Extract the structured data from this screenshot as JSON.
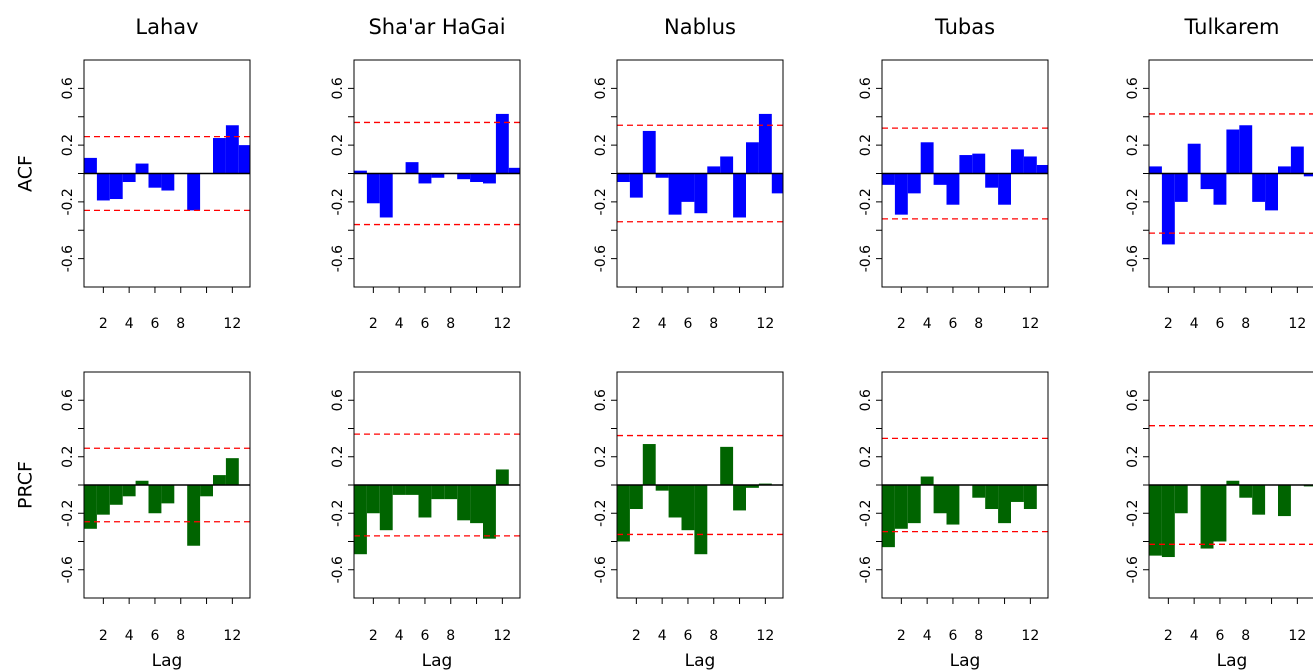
{
  "figure": {
    "row_labels": [
      "ACF",
      "PRCF"
    ],
    "x_axis_label": "Lag",
    "bar_colors": {
      "ACF": "#0000ff",
      "PRCF": "#006400"
    },
    "bound_color": "#ff0000"
  },
  "chart_data": [
    {
      "type": "bar",
      "title": "Lahav",
      "ylabel": "ACF",
      "xlabel": "",
      "ylim": [
        -0.8,
        0.8
      ],
      "x_ticks": [
        2,
        4,
        6,
        8,
        12
      ],
      "y_ticks": [
        -0.6,
        -0.2,
        0.2,
        0.6
      ],
      "bound": 0.26,
      "lags": [
        1,
        2,
        3,
        4,
        5,
        6,
        7,
        8,
        9,
        10,
        11,
        12,
        13
      ],
      "values": [
        0.11,
        -0.19,
        -0.18,
        -0.06,
        0.07,
        -0.1,
        -0.12,
        0.0,
        -0.26,
        0.0,
        0.25,
        0.34,
        0.2
      ]
    },
    {
      "type": "bar",
      "title": "Sha'ar HaGai",
      "ylabel": "",
      "xlabel": "",
      "ylim": [
        -0.8,
        0.8
      ],
      "x_ticks": [
        2,
        4,
        6,
        8,
        12
      ],
      "y_ticks": [
        -0.6,
        -0.2,
        0.2,
        0.6
      ],
      "bound": 0.36,
      "lags": [
        1,
        2,
        3,
        4,
        5,
        6,
        7,
        8,
        9,
        10,
        11,
        12,
        13
      ],
      "values": [
        0.02,
        -0.21,
        -0.31,
        0.0,
        0.08,
        -0.07,
        -0.03,
        0.0,
        -0.04,
        -0.06,
        -0.07,
        0.42,
        0.04
      ]
    },
    {
      "type": "bar",
      "title": "Nablus",
      "ylabel": "",
      "xlabel": "",
      "ylim": [
        -0.8,
        0.8
      ],
      "x_ticks": [
        2,
        4,
        6,
        8,
        12
      ],
      "y_ticks": [
        -0.6,
        -0.2,
        0.2,
        0.6
      ],
      "bound": 0.34,
      "lags": [
        1,
        2,
        3,
        4,
        5,
        6,
        7,
        8,
        9,
        10,
        11,
        12,
        13
      ],
      "values": [
        -0.06,
        -0.17,
        0.3,
        -0.03,
        -0.29,
        -0.2,
        -0.28,
        0.05,
        0.12,
        -0.31,
        0.22,
        0.42,
        -0.14
      ]
    },
    {
      "type": "bar",
      "title": "Tubas",
      "ylabel": "",
      "xlabel": "",
      "ylim": [
        -0.8,
        0.8
      ],
      "x_ticks": [
        2,
        4,
        6,
        8,
        12
      ],
      "y_ticks": [
        -0.6,
        -0.2,
        0.2,
        0.6
      ],
      "bound": 0.32,
      "lags": [
        1,
        2,
        3,
        4,
        5,
        6,
        7,
        8,
        9,
        10,
        11,
        12,
        13
      ],
      "values": [
        -0.08,
        -0.29,
        -0.14,
        0.22,
        -0.08,
        -0.22,
        0.13,
        0.14,
        -0.1,
        -0.22,
        0.17,
        0.12,
        0.06
      ]
    },
    {
      "type": "bar",
      "title": "Tulkarem",
      "ylabel": "",
      "xlabel": "",
      "ylim": [
        -0.8,
        0.8
      ],
      "x_ticks": [
        2,
        4,
        6,
        8,
        12
      ],
      "y_ticks": [
        -0.6,
        -0.2,
        0.2,
        0.6
      ],
      "bound": 0.42,
      "lags": [
        1,
        2,
        3,
        4,
        5,
        6,
        7,
        8,
        9,
        10,
        11,
        12,
        13
      ],
      "values": [
        0.05,
        -0.5,
        -0.2,
        0.21,
        -0.11,
        -0.22,
        0.31,
        0.34,
        -0.2,
        -0.26,
        0.05,
        0.19,
        -0.02
      ]
    },
    {
      "type": "bar",
      "title": "",
      "ylabel": "PRCF",
      "xlabel": "Lag",
      "ylim": [
        -0.8,
        0.8
      ],
      "x_ticks": [
        2,
        4,
        6,
        8,
        12
      ],
      "y_ticks": [
        -0.6,
        -0.2,
        0.2,
        0.6
      ],
      "bound": 0.26,
      "lags": [
        1,
        2,
        3,
        4,
        5,
        6,
        7,
        8,
        9,
        10,
        11,
        12
      ],
      "values": [
        -0.31,
        -0.21,
        -0.14,
        -0.08,
        0.03,
        -0.2,
        -0.13,
        0.0,
        -0.43,
        -0.08,
        0.07,
        0.19
      ]
    },
    {
      "type": "bar",
      "title": "",
      "ylabel": "",
      "xlabel": "Lag",
      "ylim": [
        -0.8,
        0.8
      ],
      "x_ticks": [
        2,
        4,
        6,
        8,
        12
      ],
      "y_ticks": [
        -0.6,
        -0.2,
        0.2,
        0.6
      ],
      "bound": 0.36,
      "lags": [
        1,
        2,
        3,
        4,
        5,
        6,
        7,
        8,
        9,
        10,
        11,
        12
      ],
      "values": [
        -0.49,
        -0.2,
        -0.32,
        -0.07,
        -0.07,
        -0.23,
        -0.1,
        -0.1,
        -0.25,
        -0.27,
        -0.38,
        0.11
      ]
    },
    {
      "type": "bar",
      "title": "",
      "ylabel": "",
      "xlabel": "Lag",
      "ylim": [
        -0.8,
        0.8
      ],
      "x_ticks": [
        2,
        4,
        6,
        8,
        12
      ],
      "y_ticks": [
        -0.6,
        -0.2,
        0.2,
        0.6
      ],
      "bound": 0.35,
      "lags": [
        1,
        2,
        3,
        4,
        5,
        6,
        7,
        8,
        9,
        10,
        11,
        12,
        13
      ],
      "values": [
        -0.4,
        -0.17,
        0.29,
        -0.04,
        -0.23,
        -0.32,
        -0.49,
        0.0,
        0.27,
        -0.18,
        -0.02,
        0.01,
        0.0
      ]
    },
    {
      "type": "bar",
      "title": "",
      "ylabel": "",
      "xlabel": "Lag",
      "ylim": [
        -0.8,
        0.8
      ],
      "x_ticks": [
        2,
        4,
        6,
        8,
        12
      ],
      "y_ticks": [
        -0.6,
        -0.2,
        0.2,
        0.6
      ],
      "bound": 0.33,
      "lags": [
        1,
        2,
        3,
        4,
        5,
        6,
        7,
        8,
        9,
        10,
        11,
        12
      ],
      "values": [
        -0.44,
        -0.31,
        -0.27,
        0.06,
        -0.2,
        -0.28,
        0.0,
        -0.09,
        -0.17,
        -0.27,
        -0.12,
        -0.17
      ]
    },
    {
      "type": "bar",
      "title": "",
      "ylabel": "",
      "xlabel": "Lag",
      "ylim": [
        -0.8,
        0.8
      ],
      "x_ticks": [
        2,
        4,
        6,
        8,
        12
      ],
      "y_ticks": [
        -0.6,
        -0.2,
        0.2,
        0.6
      ],
      "bound": 0.42,
      "lags": [
        1,
        2,
        3,
        4,
        5,
        6,
        7,
        8,
        9,
        10,
        11,
        12,
        13
      ],
      "values": [
        -0.5,
        -0.51,
        -0.2,
        0.0,
        -0.45,
        -0.4,
        0.03,
        -0.09,
        -0.21,
        0.0,
        -0.22,
        0.0,
        -0.01
      ]
    }
  ]
}
